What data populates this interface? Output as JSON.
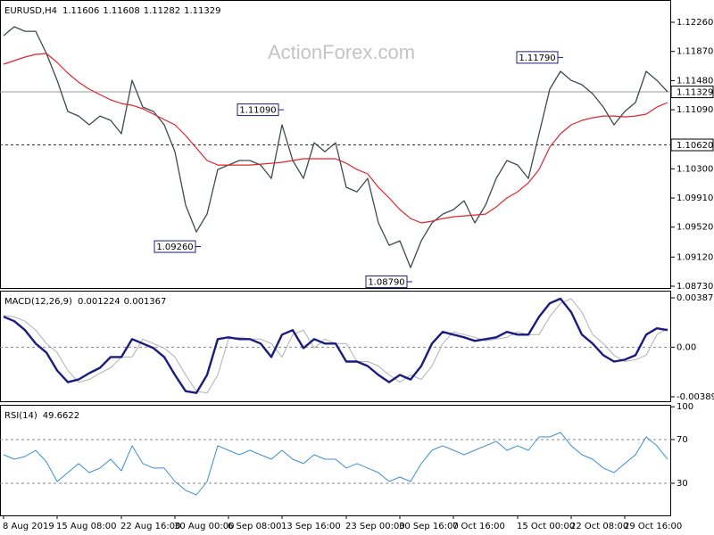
{
  "chart_data": [
    {
      "type": "line",
      "symbol": "EURUSD,H4",
      "ohlc": [
        1.11606,
        1.11608,
        1.11282,
        1.11329
      ],
      "watermark": "ActionForex.com",
      "ylim": [
        1.08706,
        1.12558
      ],
      "yticks": [
        {
          "value": 1.1226,
          "label": "1.12260"
        },
        {
          "value": 1.1187,
          "label": "1.11870"
        },
        {
          "value": 1.1148,
          "label": "1.11480"
        },
        {
          "value": 1.1109,
          "label": "1.11090"
        },
        {
          "value": 1.103,
          "label": "1.10300"
        },
        {
          "value": 1.0991,
          "label": "1.09910"
        },
        {
          "value": 1.0952,
          "label": "1.09520"
        },
        {
          "value": 1.0912,
          "label": "1.09120"
        },
        {
          "value": 1.0873,
          "label": "1.08730"
        }
      ],
      "hlines": [
        {
          "value": 1.11329,
          "label": "1.11329",
          "style": "solid"
        },
        {
          "value": 1.1062,
          "label": "1.10620",
          "style": "dashed"
        }
      ],
      "annotations": [
        {
          "value": 1.1179,
          "label": "1.11790"
        },
        {
          "value": 1.1109,
          "label": "1.11090"
        },
        {
          "value": 1.0926,
          "label": "1.09260"
        },
        {
          "value": 1.0879,
          "label": "1.08790"
        }
      ],
      "series": [
        {
          "color": "#3c4a50",
          "width": 1.3,
          "values": [
            1.12081,
            1.122,
            1.1214,
            1.1214,
            1.11842,
            1.11484,
            1.11067,
            1.11007,
            1.10888,
            1.11007,
            1.10948,
            1.10769,
            1.11484,
            1.11126,
            1.11067,
            1.10888,
            1.1053,
            1.09814,
            1.09456,
            1.09695,
            1.10291,
            1.10351,
            1.10411,
            1.10411,
            1.10351,
            1.10172,
            1.10888,
            1.10411,
            1.10172,
            1.10649,
            1.1053,
            1.10649,
            1.10053,
            1.09993,
            1.10172,
            1.09576,
            1.09277,
            1.09337,
            1.08979,
            1.09337,
            1.09576,
            1.09695,
            1.09754,
            1.09874,
            1.09576,
            1.09814,
            1.10172,
            1.10411,
            1.10351,
            1.10172,
            1.10769,
            1.11365,
            1.11604,
            1.11484,
            1.11425,
            1.11305,
            1.11126,
            1.10888,
            1.11067,
            1.11186,
            1.11604,
            1.11484,
            1.11329
          ]
        },
        {
          "color": "#e0242c",
          "width": 1.2,
          "values": [
            1.11699,
            1.11747,
            1.11795,
            1.1183,
            1.11842,
            1.11723,
            1.1158,
            1.1146,
            1.11365,
            1.11293,
            1.11222,
            1.11174,
            1.1115,
            1.11103,
            1.11031,
            1.10959,
            1.10888,
            1.10745,
            1.10578,
            1.10411,
            1.10351,
            1.10351,
            1.10351,
            1.10351,
            1.10363,
            1.10375,
            1.10387,
            1.10411,
            1.10435,
            1.10435,
            1.10435,
            1.10435,
            1.10375,
            1.10291,
            1.10232,
            1.10053,
            1.0991,
            1.09755,
            1.09635,
            1.09576,
            1.096,
            1.09635,
            1.09659,
            1.09671,
            1.09683,
            1.09695,
            1.0979,
            1.0991,
            1.09993,
            1.10112,
            1.10291,
            1.1059,
            1.10769,
            1.10888,
            1.10948,
            1.10983,
            1.11007,
            1.11007,
            1.10995,
            1.11007,
            1.11031,
            1.11126,
            1.11186
          ]
        }
      ]
    },
    {
      "type": "line",
      "title": "MACD(12,26,9)",
      "readout": [
        0.001224,
        0.001367
      ],
      "ylim": [
        -0.00425,
        0.00444
      ],
      "yticks": [
        0.003876,
        {
          "value": 0,
          "label": "0.00"
        },
        -0.003899
      ],
      "levels": [
        0
      ],
      "series": [
        {
          "color": "#b0b0b0",
          "width": 1,
          "values": [
            0.0025,
            0.002397,
            0.002045,
            0.00134,
            0.000282,
            -0.000423,
            -0.001833,
            -0.00275,
            -0.002538,
            -0.002045,
            -0.001622,
            -0.000776,
            -0.000776,
            0.000635,
            0.000282,
            -7.1e-05,
            -0.000776,
            -0.002186,
            -0.003455,
            -0.003596,
            -0.002186,
            0.000635,
            0.000776,
            0.000635,
            0.000635,
            0.000282,
            -0.000776,
            0.000987,
            0.00134,
            -7.1e-05,
            0.000635,
            0.000282,
            0.000282,
            -0.001128,
            -0.001128,
            -0.001481,
            -0.002186,
            -0.00275,
            -0.002186,
            -0.002538,
            -0.001481,
            0.000282,
            0.001199,
            0.000987,
            0.000776,
            0.000494,
            0.000635,
            0.000776,
            0.001199,
            0.000987,
            0.000987,
            0.002397,
            0.003455,
            0.003807,
            0.00275,
            0.000987,
            0.000282,
            -0.000635,
            -0.001128,
            -0.000987,
            -0.000635,
            0.000987,
            0.001481
          ]
        },
        {
          "color": "#1c1c80",
          "width": 2.4,
          "values": [
            0.002397,
            0.002045,
            0.00134,
            0.000282,
            -0.000423,
            -0.001833,
            -0.00275,
            -0.002538,
            -0.002045,
            -0.001622,
            -0.000776,
            -0.000776,
            0.000635,
            0.000282,
            -7.1e-05,
            -0.000776,
            -0.002186,
            -0.003455,
            -0.003596,
            -0.002186,
            0.000635,
            0.000776,
            0.000635,
            0.000635,
            0.000282,
            -0.000776,
            0.000987,
            0.00134,
            -7.1e-05,
            0.000635,
            0.000282,
            0.000282,
            -0.001128,
            -0.001128,
            -0.001481,
            -0.002186,
            -0.00275,
            -0.002186,
            -0.002538,
            -0.001481,
            0.000282,
            0.001199,
            0.000987,
            0.000776,
            0.000494,
            0.000635,
            0.000776,
            0.001199,
            0.000987,
            0.000987,
            0.002397,
            0.003455,
            0.003807,
            0.00275,
            0.000987,
            0.000282,
            -0.000635,
            -0.001128,
            -0.000987,
            -0.000635,
            0.000987,
            0.001481,
            0.00134
          ]
        }
      ]
    },
    {
      "type": "line",
      "title": "RSI(14)",
      "readout": [
        49.6622
      ],
      "ylim": [
        0.6,
        101.8
      ],
      "yticks": [
        100,
        70,
        30
      ],
      "levels": [
        70,
        30
      ],
      "categories": [
        "8 Aug 2019",
        null,
        null,
        null,
        null,
        "15 Aug 08:00",
        null,
        null,
        null,
        null,
        null,
        "22 Aug 16:00",
        null,
        null,
        null,
        null,
        "30 Aug 00:00",
        null,
        null,
        null,
        null,
        "6 Sep 08:00",
        null,
        null,
        null,
        null,
        "13 Sep 16:00",
        null,
        null,
        null,
        null,
        null,
        "23 Sep 00:00",
        null,
        null,
        null,
        null,
        "30 Sep 16:00",
        null,
        null,
        null,
        null,
        "7 Oct 16:00",
        null,
        null,
        null,
        null,
        null,
        "15 Oct 00:00",
        null,
        null,
        null,
        null,
        "22 Oct 08:00",
        null,
        null,
        null,
        null,
        "29 Oct 16:00",
        null,
        null,
        null,
        null
      ],
      "series": [
        {
          "color": "#3a8ed6",
          "width": 1,
          "values": [
            56.1,
            52.0,
            54.5,
            60.2,
            49.6,
            31.6,
            39.8,
            48.0,
            39.8,
            43.9,
            52.0,
            41.4,
            64.3,
            48.0,
            43.9,
            43.9,
            31.6,
            23.5,
            19.4,
            31.6,
            64.3,
            60.2,
            56.1,
            60.2,
            56.1,
            52.0,
            60.2,
            52.0,
            48.0,
            56.1,
            52.0,
            52.0,
            43.9,
            48.0,
            43.9,
            39.8,
            31.6,
            35.7,
            31.6,
            48.0,
            60.2,
            64.3,
            60.2,
            56.1,
            60.2,
            64.3,
            68.4,
            60.2,
            64.3,
            60.2,
            72.4,
            72.4,
            76.5,
            64.3,
            56.1,
            52.0,
            43.9,
            39.8,
            48.0,
            56.1,
            72.4,
            64.3,
            52.0
          ]
        }
      ]
    }
  ]
}
